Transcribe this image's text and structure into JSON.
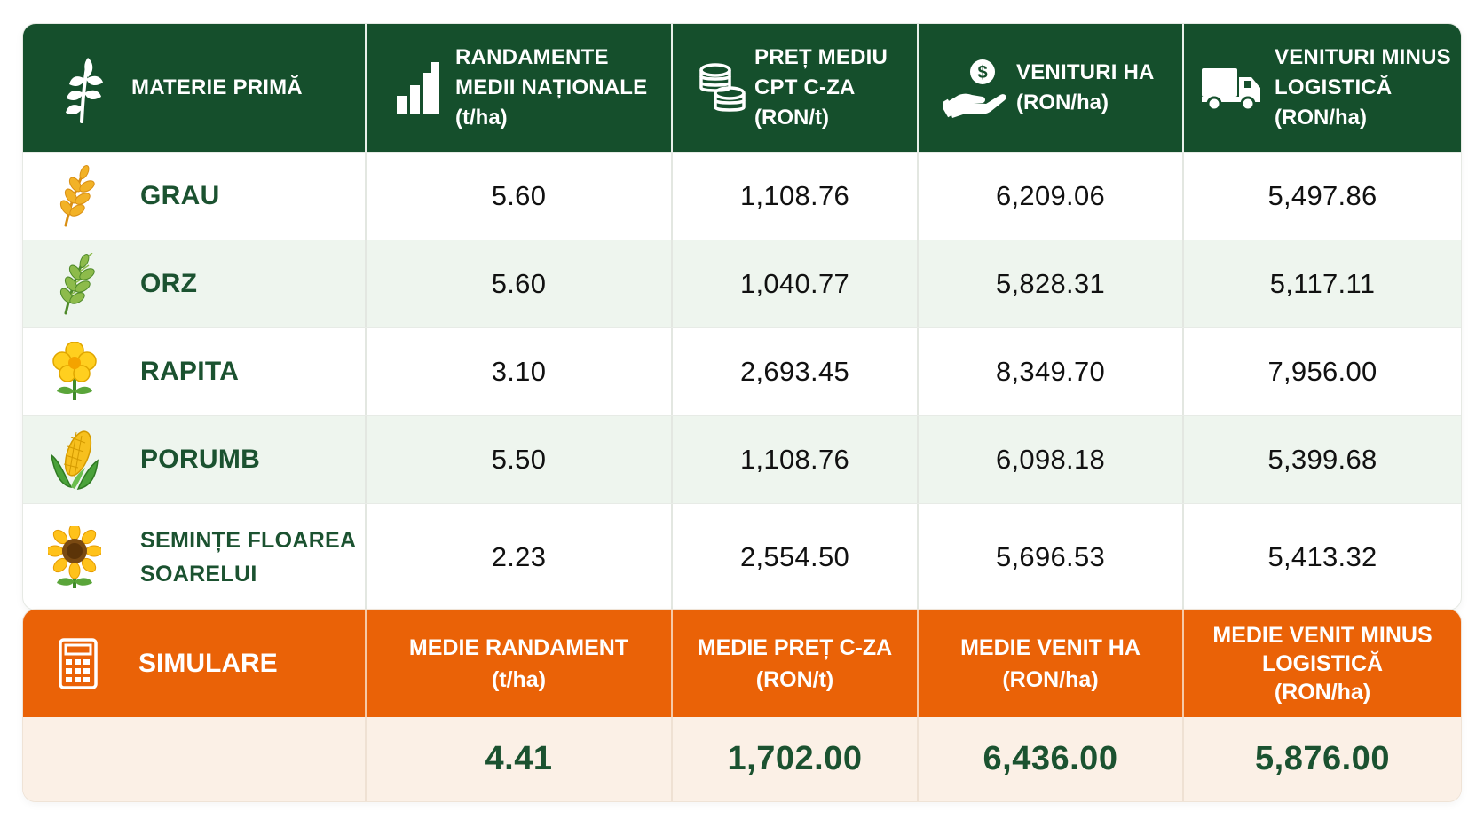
{
  "header": {
    "col1": "MATERIE PRIMĂ",
    "col2": [
      "RANDAMENTE",
      "MEDII NAȚIONALE",
      "(t/ha)"
    ],
    "col3": [
      "PREȚ MEDIU",
      "CPT C-ZA",
      "(RON/t)"
    ],
    "col4": [
      "VENITURI HA",
      "(RON/ha)"
    ],
    "col5": [
      "VENITURI MINUS",
      "LOGISTICĂ",
      "(RON/ha)"
    ]
  },
  "rows": [
    {
      "name": "GRAU",
      "icon": "wheat-icon",
      "yield": "5.60",
      "price": "1,108.76",
      "revenue": "6,209.06",
      "net": "5,497.86"
    },
    {
      "name": "ORZ",
      "icon": "barley-icon",
      "yield": "5.60",
      "price": "1,040.77",
      "revenue": "5,828.31",
      "net": "5,117.11"
    },
    {
      "name": "RAPITA",
      "icon": "rapeseed-flower-icon",
      "yield": "3.10",
      "price": "2,693.45",
      "revenue": "8,349.70",
      "net": "7,956.00"
    },
    {
      "name": "PORUMB",
      "icon": "corn-icon",
      "yield": "5.50",
      "price": "1,108.76",
      "revenue": "6,098.18",
      "net": "5,399.68"
    },
    {
      "name_lines": [
        "SEMINȚE FLOAREA",
        "SOARELUI"
      ],
      "icon": "sunflower-icon",
      "yield": "2.23",
      "price": "2,554.50",
      "revenue": "5,696.53",
      "net": "5,413.32"
    }
  ],
  "simulation": {
    "title": "SIMULARE",
    "col2": [
      "MEDIE RANDAMENT",
      "(t/ha)"
    ],
    "col3": [
      "MEDIE PREȚ C-ZA",
      "(RON/t)"
    ],
    "col4": [
      "MEDIE VENIT HA",
      "(RON/ha)"
    ],
    "col5": [
      "MEDIE VENIT MINUS",
      "LOGISTICĂ",
      "(RON/ha)"
    ],
    "values": {
      "yield": "4.41",
      "price": "1,702.00",
      "revenue": "6,436.00",
      "net": "5,876.00"
    }
  },
  "colors": {
    "header_green": "#154f2c",
    "alt_row": "#eef5ee",
    "accent_orange": "#ea6207",
    "summary_bg": "#fbf0e6",
    "text_green": "#1b5230"
  }
}
